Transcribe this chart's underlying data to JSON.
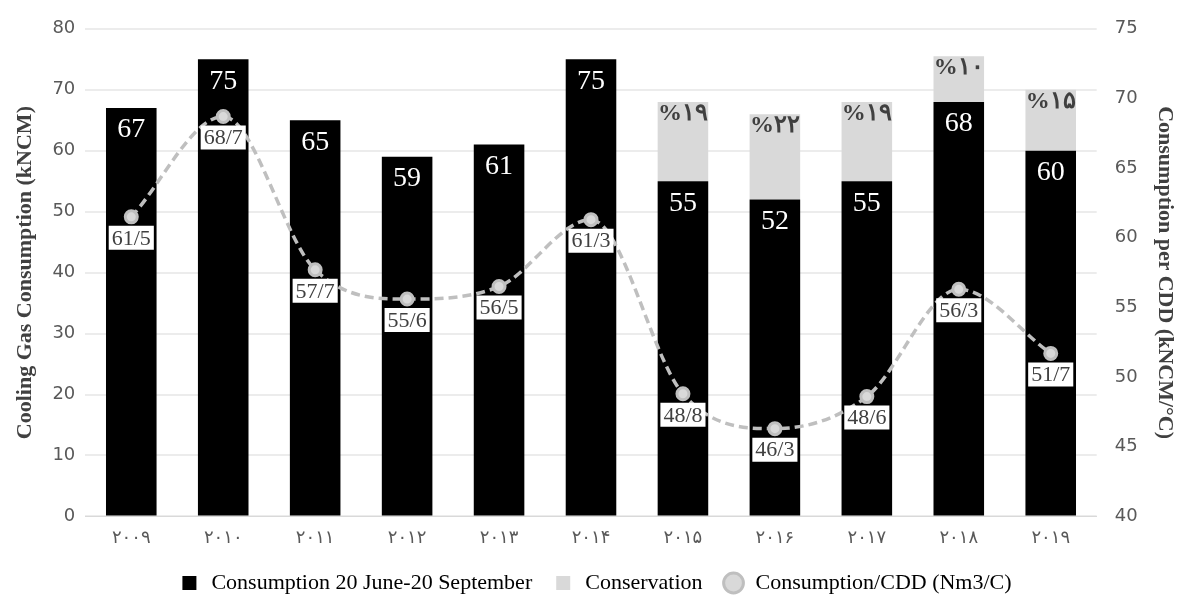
{
  "chart_data": {
    "type": "bar",
    "stacked": true,
    "xlabel": null,
    "ylabel": "Cooling Gas Consumption (kNCM)",
    "y2label": "Consumption per CDD (kNCM/°C)",
    "categories": [
      "۲۰۰۹",
      "۲۰۱۰",
      "۲۰۱۱",
      "۲۰۱۲",
      "۲۰۱۳",
      "۲۰۱۴",
      "۲۰۱۵",
      "۲۰۱۶",
      "۲۰۱۷",
      "۲۰۱۸",
      "۲۰۱۹"
    ],
    "series": [
      {
        "name": "Consumption 20 June-20 September",
        "color": "#000000",
        "values": [
          67,
          75,
          65,
          59,
          61,
          75,
          55,
          52,
          55,
          68,
          60
        ],
        "value_labels": [
          "67",
          "75",
          "65",
          "59",
          "61",
          "75",
          "55",
          "52",
          "55",
          "68",
          "60"
        ]
      },
      {
        "name": "Conservation",
        "color": "#d9d9d9",
        "values": [
          null,
          null,
          null,
          null,
          null,
          null,
          13,
          14,
          13,
          7.5,
          10
        ]
      },
      {
        "name": "Consumption/CDD (Nm3/C)",
        "type": "line",
        "axis": "y2",
        "color": "#bfbfbf",
        "marker": "circle",
        "line_style": "dashed",
        "values": [
          61.5,
          68.7,
          57.7,
          55.6,
          56.5,
          61.3,
          48.8,
          46.3,
          48.6,
          56.3,
          51.7
        ],
        "value_labels": [
          "61/5",
          "68/7",
          "57/7",
          "55/6",
          "56/5",
          "61/3",
          "48/8",
          "46/3",
          "48/6",
          "56/3",
          "51/7"
        ]
      }
    ],
    "ylim": [
      0,
      80
    ],
    "yticks": [
      0,
      10,
      20,
      30,
      40,
      50,
      60,
      70,
      80
    ],
    "y2lim": [
      40,
      75
    ],
    "y2ticks": [
      40,
      45,
      50,
      55,
      60,
      65,
      70,
      75
    ],
    "annotations": [
      {
        "text": "%۱۹",
        "x": "۲۰۱۵",
        "y": 68
      },
      {
        "text": "%۲۲",
        "x": "۲۰۱۶",
        "y": 66
      },
      {
        "text": "%۱۹",
        "x": "۲۰۱۷",
        "y": 68
      },
      {
        "text": "%۱۰",
        "x": "۲۰۱۸",
        "y": 75.5
      },
      {
        "text": "%۱۵",
        "x": "۲۰۱۹",
        "y": 70
      }
    ],
    "grid": "y",
    "legend": "bottom"
  }
}
